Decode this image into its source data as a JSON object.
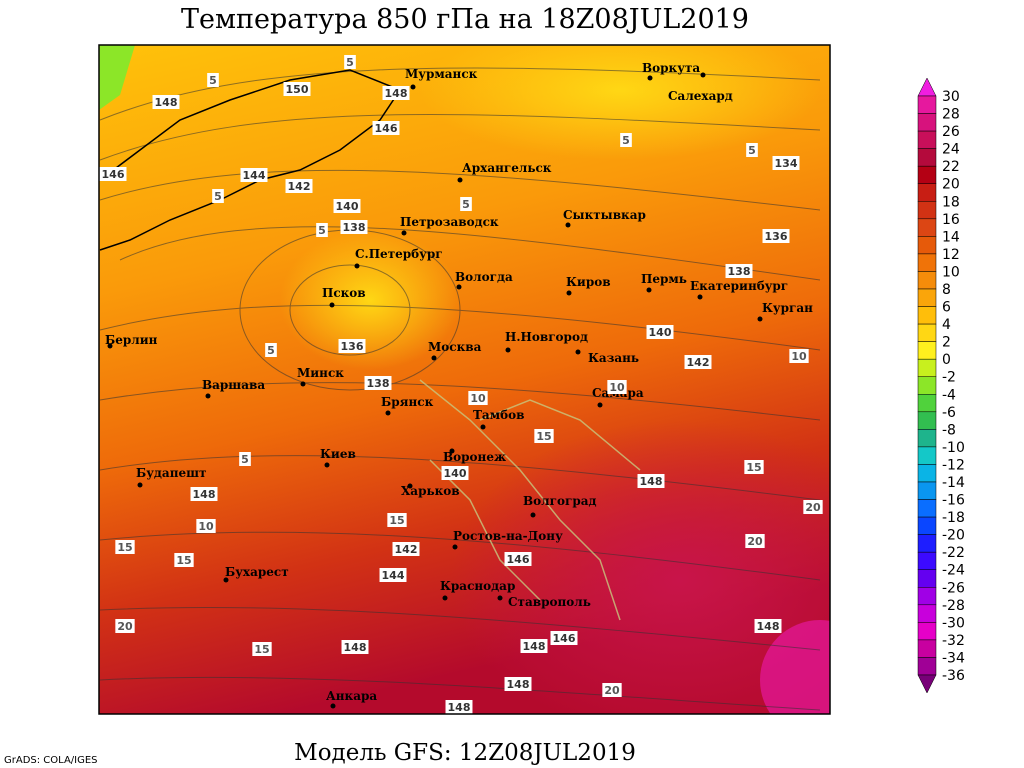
{
  "header": {
    "title": "Температура 850 гПа на 18Z08JUL2019"
  },
  "footer": {
    "model": "Модель GFS: 12Z08JUL2019",
    "credit": "GrADS: COLA/IGES"
  },
  "colorbar": {
    "levels": [
      30,
      28,
      26,
      24,
      22,
      20,
      18,
      16,
      14,
      12,
      10,
      8,
      6,
      4,
      2,
      0,
      -2,
      -4,
      -6,
      -8,
      -10,
      -12,
      -14,
      -16,
      -18,
      -20,
      -22,
      -24,
      -26,
      -28,
      -30,
      -32,
      -34,
      -36
    ],
    "colors": [
      "#f01ee0",
      "#e6189e",
      "#d7127d",
      "#c80f5a",
      "#b40a3c",
      "#b40014",
      "#c81e14",
      "#d23214",
      "#dc4614",
      "#e65a0a",
      "#f07308",
      "#f58c0a",
      "#faa50a",
      "#ffbe0a",
      "#ffd714",
      "#fff01e",
      "#c8f01e",
      "#8ce628",
      "#50d23c",
      "#32be50",
      "#1eb48c",
      "#14c8c8",
      "#0ab4e6",
      "#0a96f0",
      "#0a6eff",
      "#0a46ff",
      "#1e1eff",
      "#3c0aff",
      "#6400f0",
      "#a000e6",
      "#c800dc",
      "#e600c8",
      "#c800a0",
      "#a00096",
      "#780078"
    ]
  },
  "map": {
    "cities": [
      "Мурманск",
      "Воркута",
      "Салехард",
      "Архангельск",
      "Сыктывкар",
      "Петрозаводск",
      "С.Петербург",
      "Вологда",
      "Киров",
      "Пермь",
      "Екатеринбург",
      "Курган",
      "Псков",
      "Н.Новгород",
      "Москва",
      "Казань",
      "Берлин",
      "Минск",
      "Варшава",
      "Самара",
      "Брянск",
      "Тамбов",
      "Киев",
      "Воронеж",
      "Будапешт",
      "Харьков",
      "Волгоград",
      "Ростов-на-Дону",
      "Бухарест",
      "Краснодар",
      "Ставрополь",
      "Анкара"
    ],
    "height_labels": [
      148,
      150,
      148,
      146,
      146,
      144,
      142,
      140,
      138,
      136,
      138,
      134,
      136,
      138,
      140,
      142,
      148,
      148,
      146,
      142,
      144,
      148,
      148,
      146,
      148,
      148,
      148,
      140
    ],
    "temperature_labels": [
      5,
      5,
      5,
      5,
      5,
      5,
      5,
      5,
      5,
      10,
      10,
      15,
      15,
      20,
      20,
      15,
      15,
      20,
      15,
      20,
      10,
      10,
      15
    ]
  }
}
